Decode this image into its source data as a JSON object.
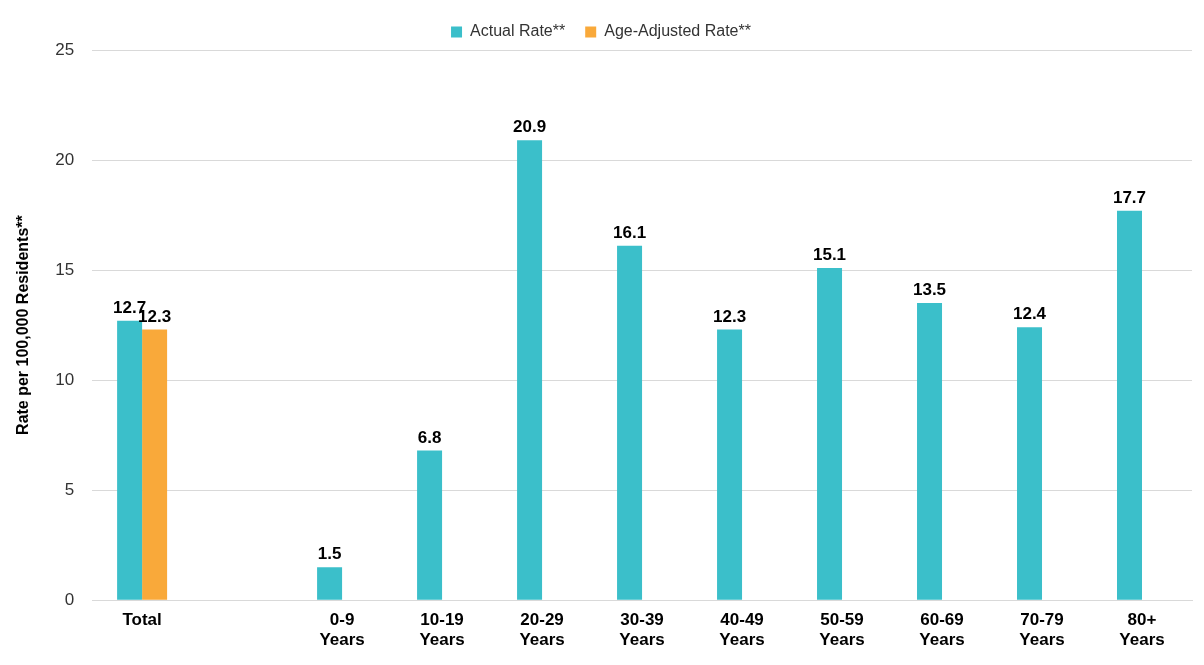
{
  "chart_data": {
    "type": "bar",
    "ylabel": "Rate per 100,000 Residents**",
    "categories": [
      "Total",
      null,
      "0-9 Years",
      "10-19 Years",
      "20-29 Years",
      "30-39 Years",
      "40-49 Years",
      "50-59 Years",
      "60-69 Years",
      "70-79 Years",
      "80+ Years"
    ],
    "series": [
      {
        "name": "Actual Rate**",
        "color": "#3bbfca",
        "values": [
          12.7,
          null,
          1.5,
          6.8,
          20.9,
          16.1,
          12.3,
          15.1,
          13.5,
          12.4,
          17.7
        ]
      },
      {
        "name": "Age-Adjusted Rate**",
        "color": "#f9a93a",
        "values": [
          12.3,
          null,
          null,
          null,
          null,
          null,
          null,
          null,
          null,
          null,
          null
        ]
      }
    ],
    "ylim": [
      0,
      25
    ],
    "yticks": [
      0,
      5,
      10,
      15,
      20,
      25
    ],
    "grid": "y",
    "legend": "top",
    "data_labels": true
  }
}
